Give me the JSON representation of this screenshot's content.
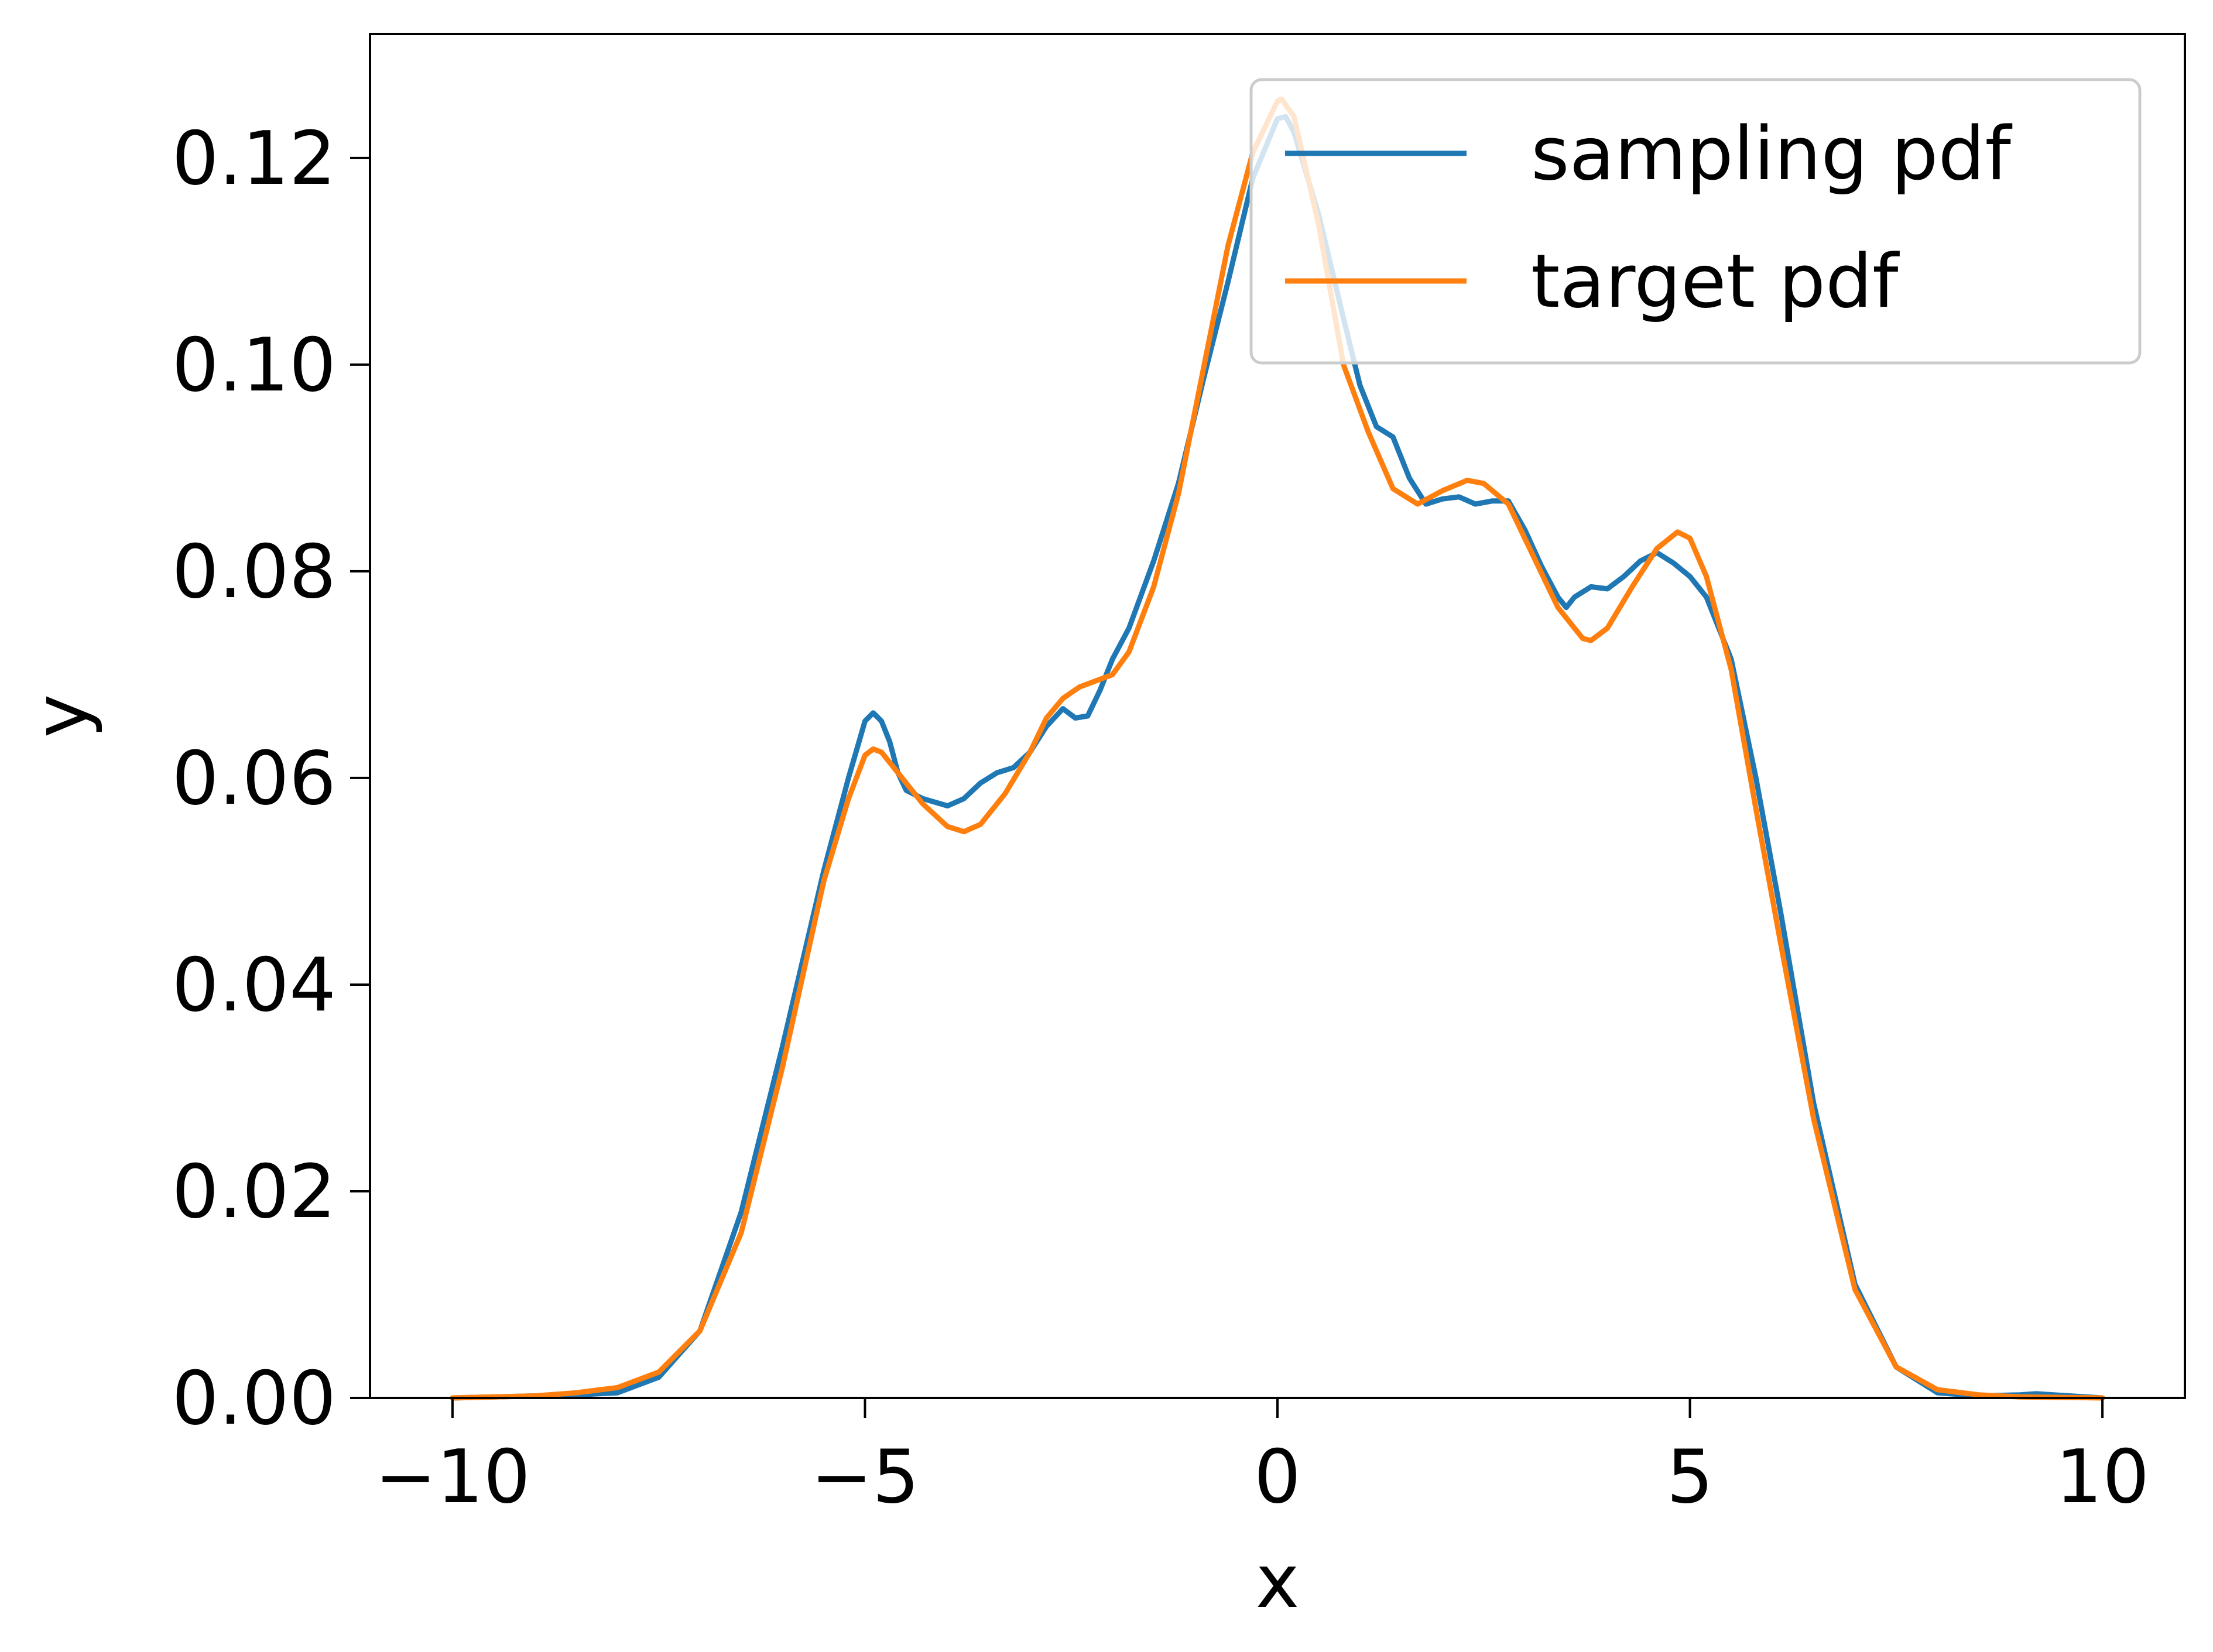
{
  "chart_data": {
    "type": "line",
    "title": "",
    "xlabel": "x",
    "ylabel": "y",
    "xlim": [
      -11,
      11
    ],
    "ylim": [
      0,
      0.132
    ],
    "xticks": [
      -10,
      -5,
      0,
      5,
      10
    ],
    "xtick_labels": [
      "−10",
      "−5",
      "0",
      "5",
      "10"
    ],
    "yticks": [
      0.0,
      0.02,
      0.04,
      0.06,
      0.08,
      0.1,
      0.12
    ],
    "ytick_labels": [
      "0.00",
      "0.02",
      "0.04",
      "0.06",
      "0.08",
      "0.10",
      "0.12"
    ],
    "grid": false,
    "legend_position": "top-right",
    "series": [
      {
        "name": "sampling pdf",
        "color": "#1f77b4",
        "x": [
          -10.0,
          -9.0,
          -8.5,
          -8.0,
          -7.5,
          -7.0,
          -6.5,
          -6.0,
          -5.5,
          -5.2,
          -5.0,
          -4.9,
          -4.8,
          -4.7,
          -4.6,
          -4.5,
          -4.3,
          -4.0,
          -3.8,
          -3.6,
          -3.4,
          -3.2,
          -3.0,
          -2.8,
          -2.6,
          -2.45,
          -2.3,
          -2.15,
          -2.0,
          -1.8,
          -1.5,
          -1.2,
          -0.9,
          -0.6,
          -0.3,
          0.0,
          0.1,
          0.2,
          0.5,
          0.8,
          1.0,
          1.2,
          1.4,
          1.6,
          1.8,
          2.0,
          2.2,
          2.4,
          2.6,
          2.8,
          3.0,
          3.2,
          3.4,
          3.5,
          3.6,
          3.8,
          4.0,
          4.2,
          4.4,
          4.6,
          4.8,
          5.0,
          5.2,
          5.5,
          5.8,
          6.1,
          6.5,
          7.0,
          7.5,
          8.0,
          8.5,
          9.0,
          9.2,
          10.0
        ],
        "y": [
          0.0,
          0.0002,
          0.0003,
          0.0005,
          0.002,
          0.0065,
          0.018,
          0.034,
          0.051,
          0.06,
          0.0655,
          0.0663,
          0.0655,
          0.0635,
          0.0605,
          0.0588,
          0.058,
          0.0573,
          0.058,
          0.0595,
          0.0605,
          0.061,
          0.0625,
          0.065,
          0.0667,
          0.0658,
          0.066,
          0.0685,
          0.0715,
          0.0745,
          0.081,
          0.0885,
          0.0985,
          0.108,
          0.118,
          0.1238,
          0.124,
          0.1225,
          0.1145,
          0.1045,
          0.098,
          0.094,
          0.093,
          0.089,
          0.0865,
          0.087,
          0.0872,
          0.0865,
          0.0868,
          0.0868,
          0.084,
          0.0805,
          0.0775,
          0.0765,
          0.0775,
          0.0785,
          0.0783,
          0.0795,
          0.081,
          0.0818,
          0.0808,
          0.0795,
          0.0775,
          0.0715,
          0.06,
          0.047,
          0.0285,
          0.011,
          0.003,
          0.0005,
          0.0002,
          0.0003,
          0.0004,
          0.0
        ]
      },
      {
        "name": "target pdf",
        "color": "#ff7f0e",
        "x": [
          -10.0,
          -9.0,
          -8.5,
          -8.0,
          -7.5,
          -7.0,
          -6.5,
          -6.0,
          -5.5,
          -5.2,
          -5.0,
          -4.9,
          -4.8,
          -4.6,
          -4.3,
          -4.0,
          -3.8,
          -3.6,
          -3.3,
          -3.0,
          -2.8,
          -2.6,
          -2.4,
          -2.2,
          -2.0,
          -1.8,
          -1.5,
          -1.2,
          -0.9,
          -0.6,
          -0.3,
          0.0,
          0.05,
          0.2,
          0.5,
          0.8,
          1.1,
          1.4,
          1.7,
          2.0,
          2.3,
          2.5,
          2.8,
          3.1,
          3.4,
          3.7,
          3.8,
          4.0,
          4.3,
          4.6,
          4.85,
          5.0,
          5.2,
          5.5,
          5.8,
          6.1,
          6.5,
          7.0,
          7.5,
          8.0,
          8.5,
          9.0,
          10.0
        ],
        "y": [
          0.0,
          0.0002,
          0.0005,
          0.001,
          0.0025,
          0.0065,
          0.016,
          0.032,
          0.05,
          0.058,
          0.0622,
          0.0628,
          0.0625,
          0.0605,
          0.0575,
          0.0553,
          0.0548,
          0.0555,
          0.0585,
          0.0625,
          0.0658,
          0.0677,
          0.0688,
          0.0694,
          0.07,
          0.0722,
          0.0785,
          0.0875,
          0.0995,
          0.1115,
          0.1205,
          0.1255,
          0.1257,
          0.124,
          0.1135,
          0.1,
          0.0935,
          0.088,
          0.0865,
          0.0878,
          0.0888,
          0.0885,
          0.0865,
          0.0815,
          0.0765,
          0.0735,
          0.0733,
          0.0745,
          0.0785,
          0.0822,
          0.0838,
          0.0832,
          0.0795,
          0.0705,
          0.057,
          0.044,
          0.027,
          0.0105,
          0.003,
          0.0008,
          0.0003,
          0.0001,
          0.0
        ]
      }
    ]
  }
}
